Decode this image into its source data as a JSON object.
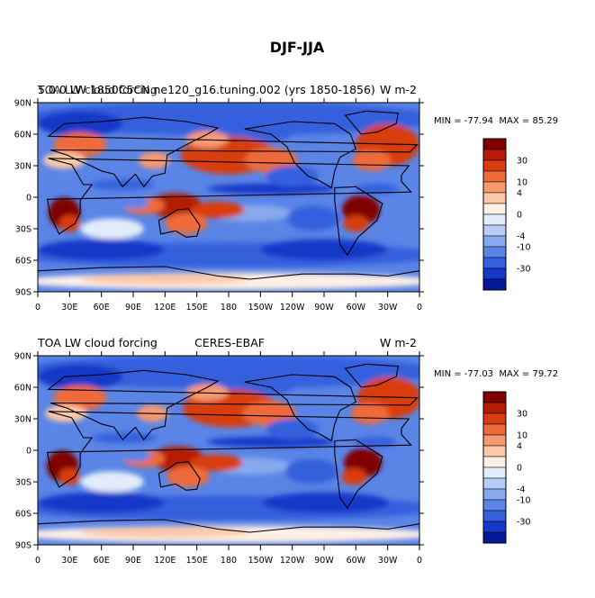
{
  "page_title": "DJF-JJA",
  "chart_data": [
    {
      "type": "heatmap",
      "title_left": "5.0.0 LW 1850C5CN.ne120_g16.tuning.002 (yrs 1850-1856)",
      "title_right": "W m-2",
      "overlap_note": "TOA LW cloud forcing",
      "x_ticks": [
        "0",
        "30E",
        "60E",
        "90E",
        "120E",
        "150E",
        "180",
        "150W",
        "120W",
        "90W",
        "60W",
        "30W",
        "0"
      ],
      "y_ticks": [
        "90N",
        "60N",
        "30N",
        "0",
        "30S",
        "60S",
        "90S"
      ],
      "x_range": [
        0,
        360
      ],
      "y_range": [
        -90,
        90
      ],
      "min_label": "MIN =",
      "min": "-77.94",
      "max_label": "MAX =",
      "max": "85.29",
      "colorbar_labels": [
        "30",
        "10",
        "4",
        "0",
        "-4",
        "-10",
        "-30"
      ]
    },
    {
      "type": "heatmap",
      "title_left": "TOA LW cloud forcing",
      "title_center": "CERES-EBAF",
      "title_right": "W m-2",
      "x_ticks": [
        "0",
        "30E",
        "60E",
        "90E",
        "120E",
        "150E",
        "180",
        "150W",
        "120W",
        "90W",
        "60W",
        "30W",
        "0"
      ],
      "y_ticks": [
        "90N",
        "60N",
        "30N",
        "0",
        "30S",
        "60S",
        "90S"
      ],
      "x_range": [
        0,
        360
      ],
      "y_range": [
        -90,
        90
      ],
      "min_label": "MIN =",
      "min": "-77.03",
      "max_label": "MAX =",
      "max": "79.72",
      "colorbar_labels": [
        "30",
        "10",
        "4",
        "0",
        "-4",
        "-10",
        "-30"
      ]
    }
  ],
  "colors": {
    "levels": [
      "#800000",
      "#b41a04",
      "#d83c10",
      "#ee6a3a",
      "#f79a70",
      "#fcc8a8",
      "#fff0e6",
      "#e2ecfb",
      "#b7cdf5",
      "#87aaee",
      "#5a84e6",
      "#3560dd",
      "#1438c8",
      "#06199a"
    ],
    "land_outline": "#000000"
  }
}
